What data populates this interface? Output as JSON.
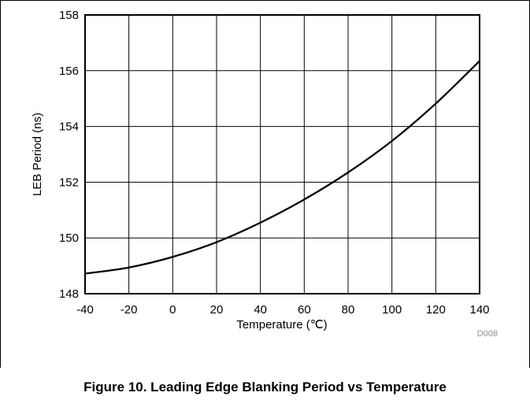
{
  "figure": {
    "caption": "Figure 10. Leading Edge Blanking Period vs Temperature",
    "code": "D008"
  },
  "chart_data": {
    "type": "line",
    "title": "",
    "xlabel": "Temperature (℃)",
    "ylabel": "LEB Period (ns)",
    "xlim": [
      -40,
      140
    ],
    "ylim": [
      148,
      158
    ],
    "xticks": [
      -40,
      -20,
      0,
      20,
      40,
      60,
      80,
      100,
      120,
      140
    ],
    "yticks": [
      148,
      150,
      152,
      154,
      156,
      158
    ],
    "grid": true,
    "legend": "none",
    "series": [
      {
        "color": "#000000",
        "x": [
          -40,
          -20,
          0,
          20,
          40,
          60,
          80,
          100,
          120,
          140
        ],
        "y": [
          148.72,
          148.94,
          149.32,
          149.85,
          150.55,
          151.38,
          152.35,
          153.48,
          154.82,
          156.35
        ]
      }
    ]
  }
}
